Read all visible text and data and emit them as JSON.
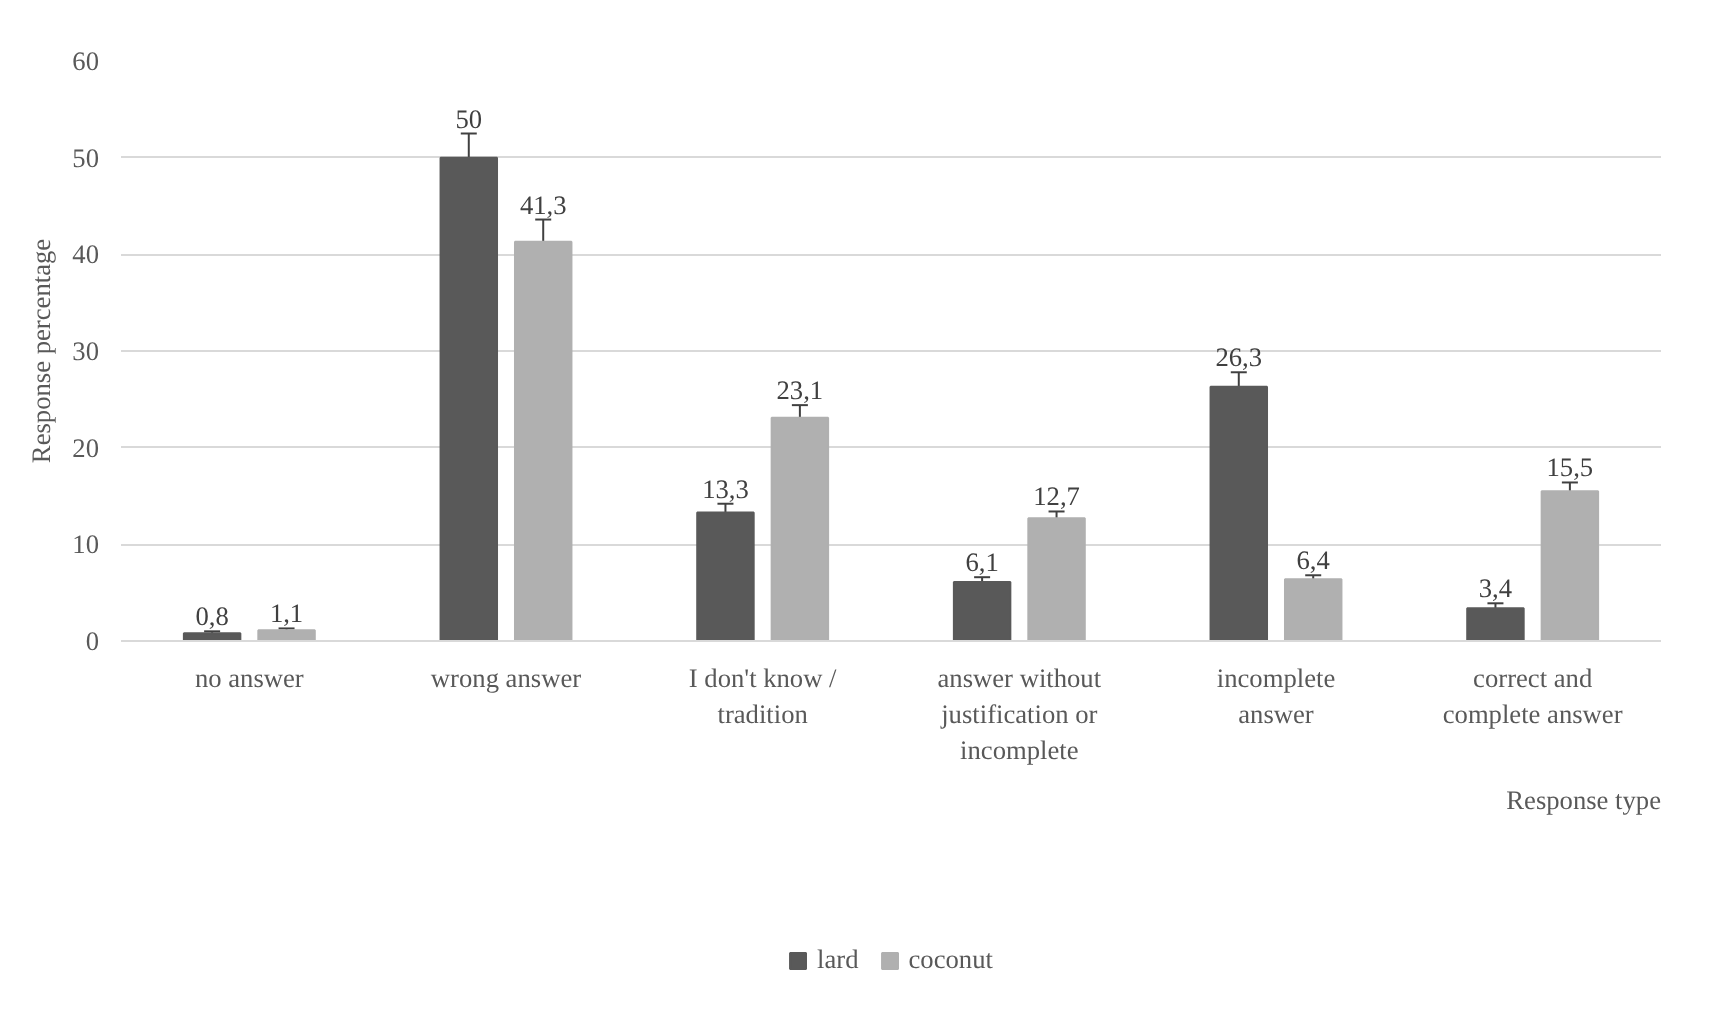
{
  "chart_data": {
    "type": "bar",
    "xlabel": "Response type",
    "ylabel": "Response percentage",
    "categories": [
      "no answer",
      "wrong answer",
      "I don't know / tradition",
      "answer without justification or incomplete",
      "incomplete answer",
      "correct and complete answer"
    ],
    "series": [
      {
        "name": "lard",
        "color": "#595959",
        "values": [
          0.8,
          50,
          13.3,
          6.1,
          26.3,
          3.4
        ],
        "errors": [
          0.2,
          2.5,
          0.9,
          0.5,
          1.5,
          0.5
        ],
        "value_labels": [
          "0,8",
          "50",
          "13,3",
          "6,1",
          "26,3",
          "3,4"
        ]
      },
      {
        "name": "coconut",
        "color": "#b0b0b0",
        "values": [
          1.1,
          41.3,
          23.1,
          12.7,
          6.4,
          15.5
        ],
        "errors": [
          0.2,
          2.3,
          1.3,
          0.7,
          0.4,
          0.9
        ],
        "value_labels": [
          "1,1",
          "41,3",
          "23,1",
          "12,7",
          "6,4",
          "15,5"
        ]
      }
    ],
    "ylim": [
      0,
      60
    ],
    "yticks": [
      0,
      10,
      20,
      30,
      40,
      50,
      60
    ],
    "grid": "y",
    "legend": "bottom"
  }
}
